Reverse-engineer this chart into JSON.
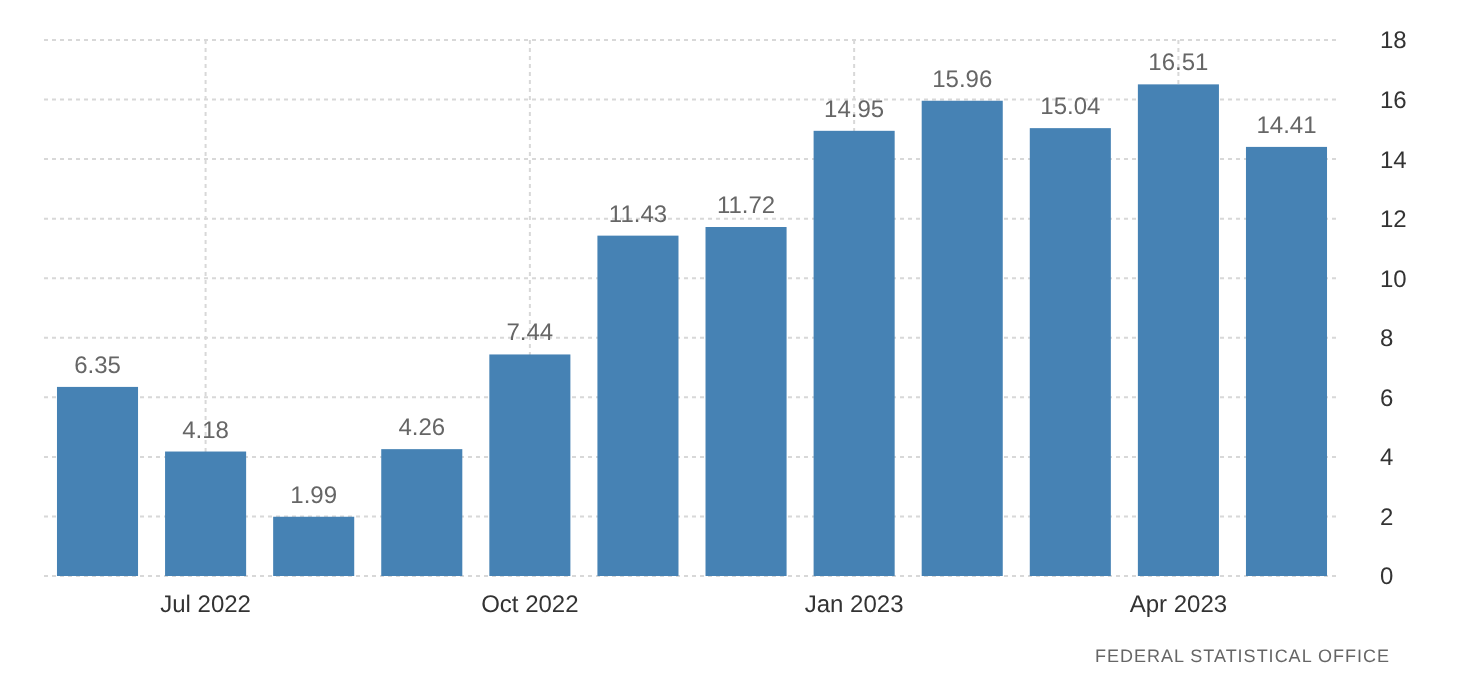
{
  "chart_data": {
    "type": "bar",
    "categories": [
      null,
      "Jul 2022",
      null,
      null,
      "Oct 2022",
      null,
      null,
      "Jan 2023",
      null,
      null,
      "Apr 2023",
      null
    ],
    "values": [
      6.35,
      4.18,
      1.99,
      4.26,
      7.44,
      11.43,
      11.72,
      14.95,
      15.96,
      15.04,
      16.51,
      14.41
    ],
    "color": "#4682b4",
    "ylim": [
      0,
      18
    ],
    "yticks": [
      0,
      2,
      4,
      6,
      8,
      10,
      12,
      14,
      16,
      18
    ],
    "grid": true,
    "data_labels": true,
    "annotations": [
      "FEDERAL STATISTICAL OFFICE"
    ]
  }
}
